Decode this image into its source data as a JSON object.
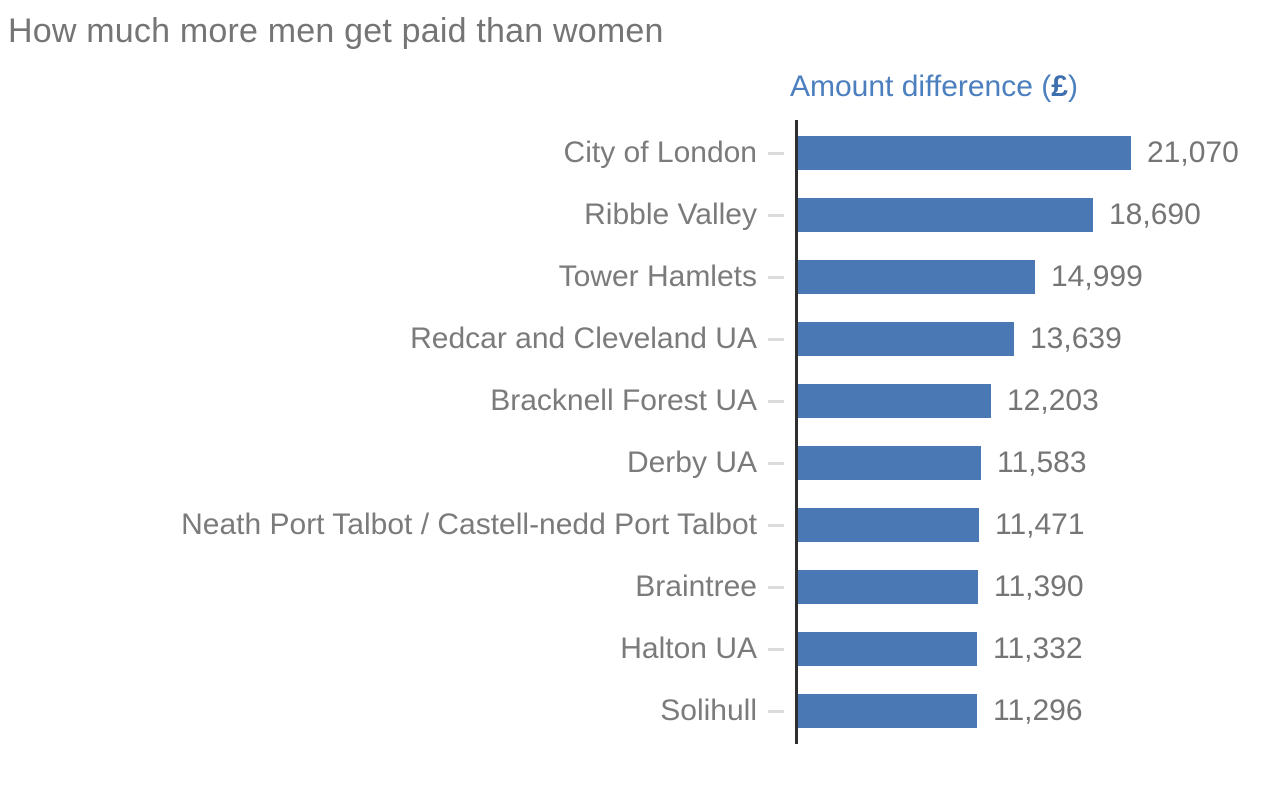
{
  "chart_data": {
    "type": "bar",
    "orientation": "horizontal",
    "title": "How much more men get paid than women",
    "axis_label": {
      "prefix": "Amount difference (",
      "symbol": "£",
      "suffix": ")"
    },
    "categories": [
      "City of London",
      "Ribble Valley",
      "Tower Hamlets",
      "Redcar and Cleveland UA",
      "Bracknell Forest UA",
      "Derby UA",
      "Neath Port Talbot / Castell-nedd Port Talbot",
      "Braintree",
      "Halton UA",
      "Solihull"
    ],
    "values": [
      21070,
      18690,
      14999,
      13639,
      12203,
      11583,
      11471,
      11390,
      11332,
      11296
    ],
    "value_labels": [
      "21,070",
      "18,690",
      "14,999",
      "13,639",
      "12,203",
      "11,583",
      "11,471",
      "11,390",
      "11,332",
      "11,296"
    ],
    "xlim": [
      0,
      21070
    ],
    "grid": false,
    "legend": "none",
    "colors": {
      "bar": "#4a78b5",
      "axis_line": "#2e2e2e",
      "tick": "#dcdcdc",
      "title_text": "#757575",
      "label_text": "#7b7b7b",
      "value_text": "#757575",
      "axis_title_text": "#4b7fbe",
      "pound_symbol": "#3e6fae",
      "background": "#ffffff"
    }
  }
}
